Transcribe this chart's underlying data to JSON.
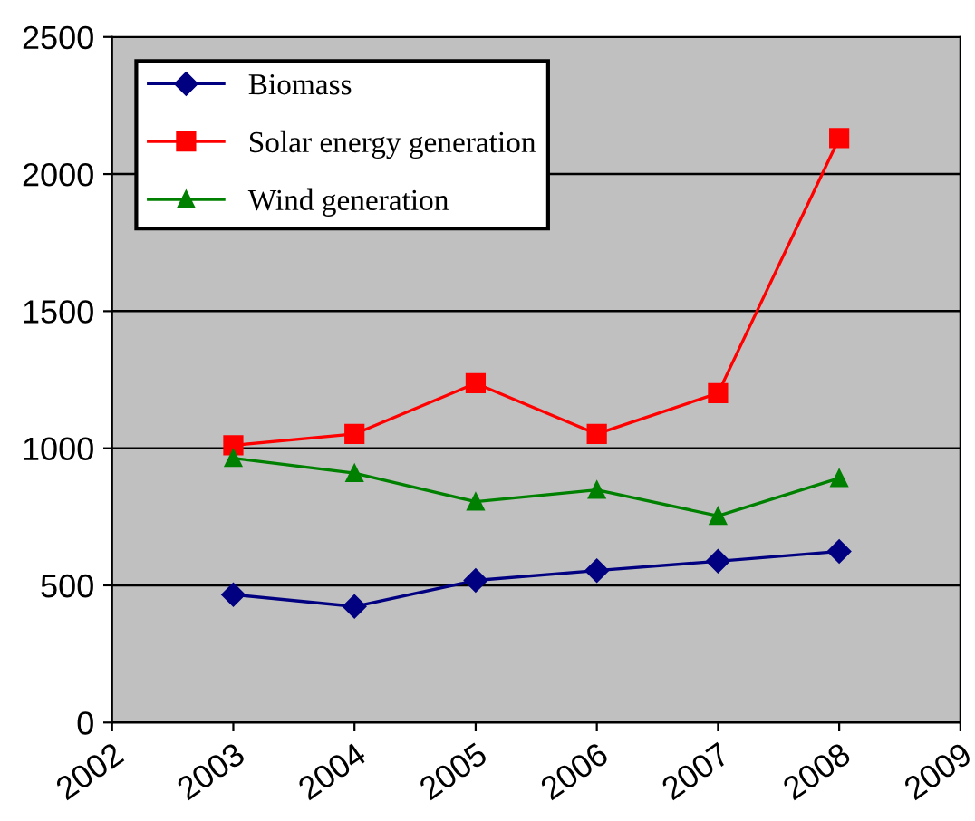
{
  "chart_data": {
    "type": "line",
    "x": [
      2003,
      2004,
      2005,
      2006,
      2007,
      2008
    ],
    "series": [
      {
        "name": "Biomass",
        "color": "#000080",
        "marker": "diamond",
        "values": [
          466,
          423,
          518,
          554,
          588,
          624
        ]
      },
      {
        "name": "Solar energy generation",
        "color": "#ff0000",
        "marker": "square",
        "values": [
          1011,
          1052,
          1237,
          1052,
          1201,
          2131
        ]
      },
      {
        "name": "Wind generation",
        "color": "#008000",
        "marker": "triangle",
        "values": [
          964,
          909,
          805,
          848,
          753,
          891
        ]
      }
    ],
    "xlim": [
      2002,
      2009
    ],
    "xticks": [
      2002,
      2003,
      2004,
      2005,
      2006,
      2007,
      2008,
      2009
    ],
    "ylim": [
      0,
      2500
    ],
    "yticks": [
      0,
      500,
      1000,
      1500,
      2000,
      2500
    ],
    "grid": "y",
    "legend": "top left",
    "line_style": "solid"
  }
}
